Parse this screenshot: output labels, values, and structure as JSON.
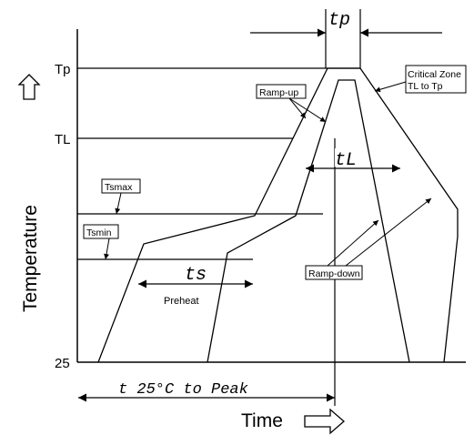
{
  "y_axis": {
    "label": "Temperature",
    "ticks": {
      "tp": "Tp",
      "tl": "TL",
      "t25": "25"
    }
  },
  "x_axis": {
    "label": "Time"
  },
  "boxes": {
    "tsmax": "Tsmax",
    "tsmin": "Tsmin",
    "ramp_up": "Ramp-up",
    "ramp_down": "Ramp-down",
    "critical_zone_line1": "Critical Zone",
    "critical_zone_line2": "TL to Tp"
  },
  "dimensions": {
    "tp": "tp",
    "tl": "tL",
    "ts": "ts",
    "preheat": "Preheat",
    "t25_to_peak": "t 25°C to Peak"
  },
  "colors": {
    "line": "#000000",
    "background": "#ffffff"
  }
}
